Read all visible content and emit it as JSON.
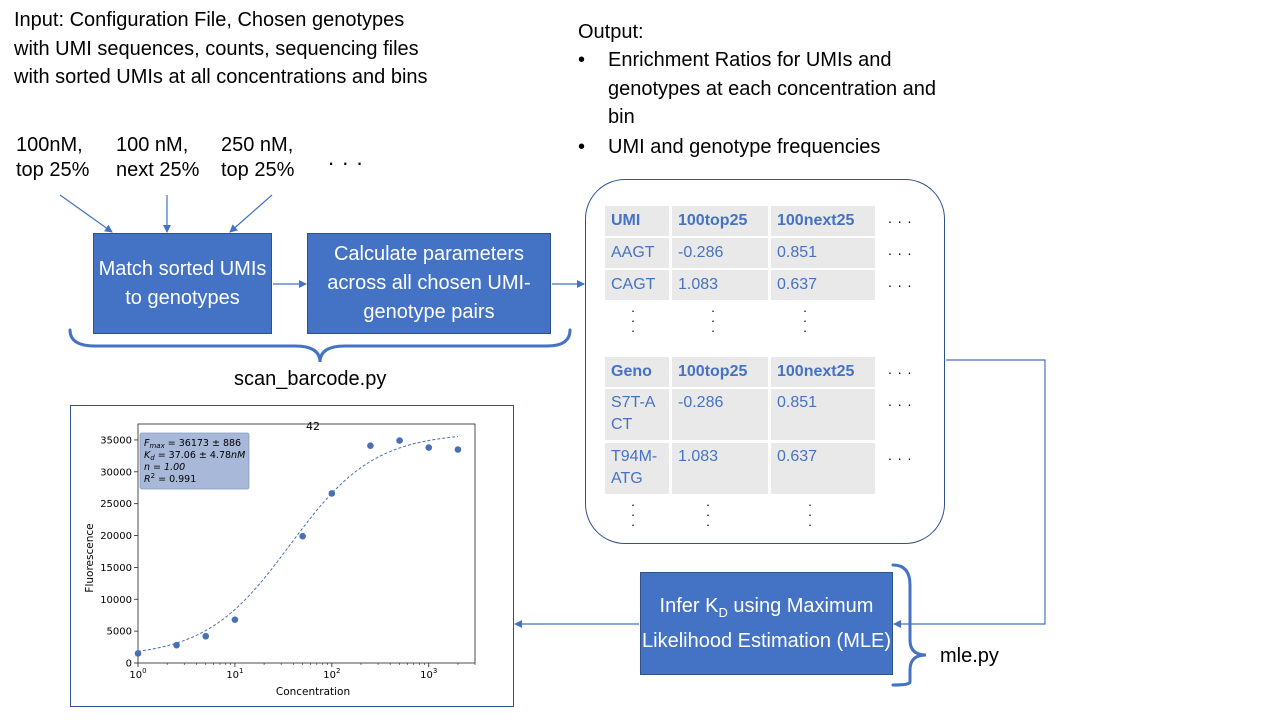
{
  "input": {
    "description": "Input: Configuration File, Chosen genotypes with UMI sequences, counts, sequencing files with sorted UMIs at all concentrations and bins",
    "conditions": [
      {
        "line1": "100nM,",
        "line2": "top 25%"
      },
      {
        "line1": "100 nM,",
        "line2": "next 25%"
      },
      {
        "line1": "250 nM,",
        "line2": "top 25%"
      }
    ],
    "ellipsis": ". . ."
  },
  "steps": {
    "match": "Match sorted UMIs to genotypes",
    "calculate": "Calculate parameters across all chosen UMI-genotype pairs",
    "infer_prefix": "Infer K",
    "infer_sub": "D",
    "infer_suffix": " using Maximum Likelihood Estimation (MLE)"
  },
  "labels": {
    "scan_script": "scan_barcode.py",
    "mle_script": "mle.py"
  },
  "output": {
    "title": "Output:",
    "bullets": [
      "Enrichment Ratios for UMIs and genotypes at each concentration and bin",
      "UMI and genotype frequencies"
    ],
    "bullet_symbol": "•"
  },
  "umi_table": {
    "headers": [
      "UMI",
      "100top25",
      "100next25"
    ],
    "rows": [
      [
        "AAGT",
        "-0.286",
        "0.851"
      ],
      [
        "CAGT",
        "1.083",
        "0.637"
      ]
    ]
  },
  "geno_table": {
    "headers": [
      "Geno",
      "100top25",
      "100next25"
    ],
    "rows": [
      [
        "S7T-ACT",
        "-0.286",
        "0.851"
      ],
      [
        "T94M-ATG",
        "1.083",
        "0.637"
      ]
    ]
  },
  "table_ellipsis": ". . .",
  "chart_data": {
    "type": "scatter",
    "title": "42",
    "xlabel": "Concentration",
    "ylabel": "Fluorescence",
    "xscale": "log",
    "xlim": [
      1,
      3000
    ],
    "ylim": [
      0,
      37500
    ],
    "x_ticks": [
      {
        "base": "10",
        "exp": "0"
      },
      {
        "base": "10",
        "exp": "1"
      },
      {
        "base": "10",
        "exp": "2"
      },
      {
        "base": "10",
        "exp": "3"
      }
    ],
    "y_ticks": [
      "0",
      "5000",
      "10000",
      "15000",
      "20000",
      "25000",
      "30000",
      "35000"
    ],
    "points": [
      {
        "x": 1,
        "y": 1500
      },
      {
        "x": 2.5,
        "y": 2800
      },
      {
        "x": 5,
        "y": 4200
      },
      {
        "x": 10,
        "y": 6800
      },
      {
        "x": 50,
        "y": 19900
      },
      {
        "x": 100,
        "y": 26600
      },
      {
        "x": 250,
        "y": 34100
      },
      {
        "x": 500,
        "y": 34900
      },
      {
        "x": 1000,
        "y": 33800
      },
      {
        "x": 2000,
        "y": 33500
      }
    ],
    "fit": {
      "fmax": 36173,
      "kd": 37.06,
      "n": 1.0,
      "baseline": 900
    },
    "legend_position": "top-left",
    "legend_lines": [
      "F_max = 36173 ± 886",
      "K_d = 37.06 ± 4.78nM",
      "n = 1.00",
      "R^2 = 0.991"
    ],
    "legend_text": {
      "fmax_sym": "F",
      "fmax_sub": "max",
      "fmax_val": " = 36173 ± 886",
      "kd_sym": "K",
      "kd_sub": "d",
      "kd_val": " = 37.06 ± 4.78",
      "kd_unit": "nM",
      "n_line": "n = 1.00",
      "r2_sym": "R",
      "r2_sup": "2",
      "r2_val": " = 0.991"
    },
    "colors": {
      "marker": "#4a6fb5",
      "legend_bg": "#a7b8d8"
    }
  }
}
